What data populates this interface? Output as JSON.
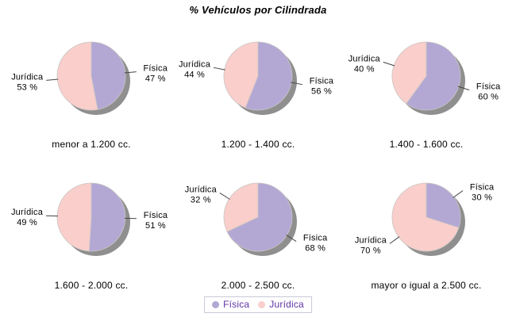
{
  "title": "% Vehículos por Cilindrada",
  "chart_data": {
    "type": "pie",
    "title": "% Vehículos por Cilindrada",
    "layout": {
      "rows": 2,
      "cols": 3,
      "legend_position": "bottom-center"
    },
    "value_suffix": " %",
    "series_labels": [
      "Física",
      "Jurídica"
    ],
    "colors": {
      "Física": "#b3a8d4",
      "Jurídica": "#f9cecb",
      "shadow": "#8f8f8f",
      "slice_outline": "#c9c6c2",
      "leader_line": "#444444",
      "label_text": "#000000",
      "legend_text": "#5e34a4",
      "legend_border": "#c9c9d8"
    },
    "legend": {
      "items": [
        {
          "label": "Física",
          "color": "#b3a8d4"
        },
        {
          "label": "Jurídica",
          "color": "#f9cecb"
        }
      ]
    },
    "pies": [
      {
        "category": "menor a 1.200 cc.",
        "slices": [
          {
            "name": "Física",
            "value": 47
          },
          {
            "name": "Jurídica",
            "value": 53
          }
        ]
      },
      {
        "category": "1.200 - 1.400 cc.",
        "slices": [
          {
            "name": "Física",
            "value": 56
          },
          {
            "name": "Jurídica",
            "value": 44
          }
        ]
      },
      {
        "category": "1.400 - 1.600 cc.",
        "slices": [
          {
            "name": "Física",
            "value": 60
          },
          {
            "name": "Jurídica",
            "value": 40
          }
        ]
      },
      {
        "category": "1.600 - 2.000 cc.",
        "slices": [
          {
            "name": "Física",
            "value": 51
          },
          {
            "name": "Jurídica",
            "value": 49
          }
        ]
      },
      {
        "category": "2.000 - 2.500 cc.",
        "slices": [
          {
            "name": "Física",
            "value": 68
          },
          {
            "name": "Jurídica",
            "value": 32
          }
        ]
      },
      {
        "category": "mayor o igual a 2.500 cc.",
        "slices": [
          {
            "name": "Física",
            "value": 30
          },
          {
            "name": "Jurídica",
            "value": 70
          }
        ]
      }
    ]
  }
}
